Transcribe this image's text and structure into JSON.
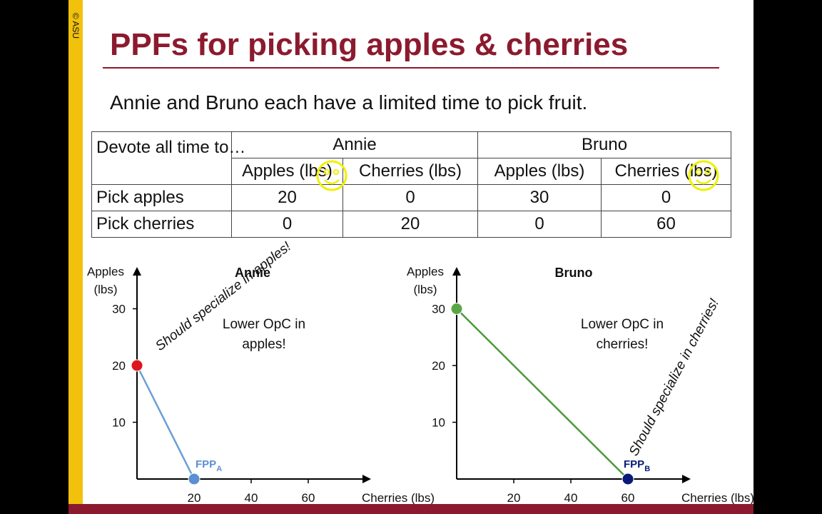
{
  "copyright": "© ASU",
  "title": "PPFs for picking apples & cherries",
  "intro": "Annie and Bruno each have a limited time to pick fruit.",
  "table": {
    "corner_label": "Devote all time to…",
    "people": [
      "Annie",
      "Bruno"
    ],
    "subheaders": [
      "Apples (lbs)",
      "Cherries (lbs)",
      "Apples (lbs)",
      "Cherries (lbs)"
    ],
    "rows": [
      {
        "label": "Pick apples",
        "values": [
          "20",
          "0",
          "30",
          "0"
        ]
      },
      {
        "label": "Pick cherries",
        "values": [
          "0",
          "20",
          "0",
          "60"
        ]
      }
    ]
  },
  "chart_data": [
    {
      "type": "line",
      "title": "Annie",
      "xlabel": "Cherries (lbs)",
      "ylabel": "Apples (lbs)",
      "xlim": [
        0,
        80
      ],
      "ylim": [
        0,
        30
      ],
      "xticks": [
        20,
        40,
        60
      ],
      "yticks": [
        10,
        20,
        30
      ],
      "series": [
        {
          "x": [
            0,
            20
          ],
          "y": [
            20,
            0
          ],
          "color": "#6a9fd4"
        }
      ],
      "points": [
        {
          "x": 0,
          "y": 20,
          "color": "#e0141e",
          "label": ""
        },
        {
          "x": 20,
          "y": 0,
          "color": "#5b8fd2",
          "label": "FPP",
          "subscript": "A"
        }
      ],
      "annotations": [
        "Lower OpC in",
        "apples!"
      ],
      "handwritten": "Should specialize in apples!"
    },
    {
      "type": "line",
      "title": "Bruno",
      "xlabel": "Cherries (lbs)",
      "ylabel": "Apples (lbs)",
      "xlim": [
        0,
        80
      ],
      "ylim": [
        0,
        30
      ],
      "xticks": [
        20,
        40,
        60
      ],
      "yticks": [
        10,
        20,
        30
      ],
      "series": [
        {
          "x": [
            0,
            60
          ],
          "y": [
            30,
            0
          ],
          "color": "#4a9a3a"
        }
      ],
      "points": [
        {
          "x": 0,
          "y": 30,
          "color": "#5aa646",
          "label": ""
        },
        {
          "x": 60,
          "y": 0,
          "color": "#0a1a78",
          "label": "FPP",
          "subscript": "B"
        }
      ],
      "annotations": [
        "Lower OpC in",
        "cherries!"
      ],
      "handwritten": "Should specialize in cherries!"
    }
  ],
  "colors": {
    "brand": "#8c1a2e",
    "sidebar": "#f2c10c",
    "highlight": "#f0f000"
  }
}
